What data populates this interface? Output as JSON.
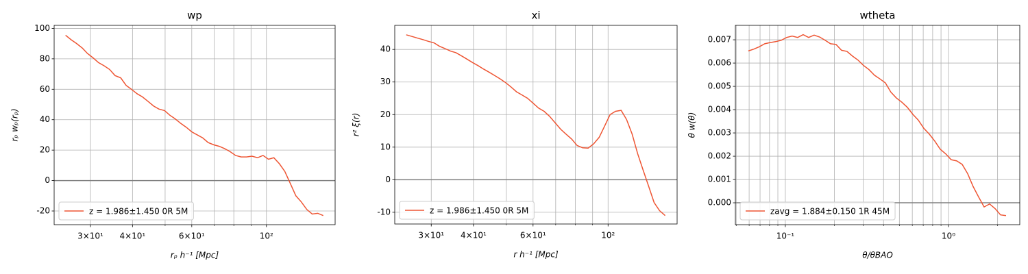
{
  "chart_data": [
    {
      "type": "line",
      "title": "wp",
      "xlabel": "rₚ h⁻¹ [Mpc]",
      "ylabel": "rₚ wₚ(rₚ)",
      "xscale": "log",
      "grid": true,
      "legend": "lower left",
      "xlim": [
        23.4,
        160
      ],
      "ylim": [
        -29,
        102
      ],
      "xticks": [
        {
          "value": 30,
          "label": "3×10¹"
        },
        {
          "value": 40,
          "label": "4×10¹"
        },
        {
          "value": 60,
          "label": "6×10¹"
        },
        {
          "value": 100,
          "label": "10²"
        }
      ],
      "xminorticks": [
        50,
        70,
        80,
        90
      ],
      "yticks": [
        -20,
        0,
        20,
        40,
        60,
        80,
        100
      ],
      "hline": 0,
      "hline_color": "#808080",
      "x": [
        25.3,
        26.3,
        27.3,
        28.4,
        29.4,
        30.6,
        31.7,
        32.9,
        34.2,
        35.5,
        36.9,
        38.3,
        39.7,
        41.3,
        42.8,
        44.5,
        46.2,
        47.9,
        49.8,
        51.6,
        53.6,
        55.7,
        57.8,
        60.0,
        62.3,
        64.7,
        67.1,
        69.7,
        72.4,
        75.1,
        78.0,
        81.0,
        84.1,
        87.3,
        90.6,
        94.1,
        97.7,
        101.4,
        105.2,
        109.3,
        113.4,
        117.8,
        122.3,
        126.9,
        131.8,
        136.8,
        142.0,
        147.5
      ],
      "series": [
        {
          "name": "z = 1.986±1.450 0R 5M",
          "color": "#ee5533",
          "values": [
            95.5,
            92.5,
            90,
            87,
            83.5,
            80.5,
            77.5,
            75.5,
            73,
            69,
            67.5,
            62.5,
            60,
            57,
            55,
            52,
            49,
            47,
            46,
            43,
            40.5,
            37.5,
            35,
            32,
            30,
            28,
            25,
            23.5,
            22.5,
            21,
            19,
            16.5,
            15.5,
            15.5,
            16,
            15,
            16.5,
            14,
            15,
            11,
            6,
            -2,
            -10,
            -14,
            -19,
            -22,
            -21.5,
            -23
          ]
        }
      ]
    },
    {
      "type": "line",
      "title": "xi",
      "xlabel": "r h⁻¹ [Mpc]",
      "ylabel": "r² ξ(r)",
      "xscale": "log",
      "grid": true,
      "legend": "lower left",
      "xlim": [
        23.4,
        160
      ],
      "ylim": [
        -13.6,
        47.4
      ],
      "xticks": [
        {
          "value": 30,
          "label": "3×10¹"
        },
        {
          "value": 40,
          "label": "4×10¹"
        },
        {
          "value": 60,
          "label": "6×10¹"
        },
        {
          "value": 100,
          "label": "10²"
        }
      ],
      "xminorticks": [
        50,
        70,
        80,
        90
      ],
      "yticks": [
        -10,
        0,
        10,
        20,
        30,
        40
      ],
      "hline": 0,
      "hline_color": "#808080",
      "x": [
        25.3,
        26.3,
        27.3,
        28.4,
        29.4,
        30.6,
        31.7,
        32.9,
        34.2,
        35.5,
        36.9,
        38.3,
        39.7,
        41.3,
        42.8,
        44.5,
        46.2,
        47.9,
        49.8,
        51.6,
        53.6,
        55.7,
        57.8,
        60.0,
        62.3,
        64.7,
        67.1,
        69.7,
        72.4,
        75.1,
        78.0,
        81.0,
        84.1,
        87.3,
        90.6,
        94.1,
        97.7,
        101.4,
        105.2,
        109.3,
        113.4,
        117.8,
        122.3,
        126.9,
        131.8,
        136.8,
        142.0,
        147.5
      ],
      "series": [
        {
          "name": "z = 1.986±1.450 0R 5M",
          "color": "#ee5533",
          "values": [
            44.5,
            44,
            43.5,
            43,
            42.5,
            42,
            41,
            40.3,
            39.5,
            39,
            38,
            37,
            36,
            35,
            34,
            33,
            32,
            31,
            29.8,
            28.5,
            27,
            26,
            25,
            23.5,
            22,
            21,
            19.5,
            17.5,
            15.5,
            14,
            12.5,
            10.5,
            9.8,
            9.7,
            11,
            13,
            16.5,
            20,
            21,
            21.3,
            18.5,
            14,
            8,
            3,
            -2,
            -7,
            -9.5,
            -11
          ]
        }
      ]
    },
    {
      "type": "line",
      "title": "wtheta",
      "xlabel": "θ/θBAO",
      "ylabel": "θ w(θ)",
      "xscale": "log",
      "grid": true,
      "legend": "lower left",
      "xlim": [
        0.0494,
        2.735
      ],
      "ylim": [
        -0.00094,
        0.00762
      ],
      "xticks": [
        {
          "value": 0.1,
          "label": "10⁻¹"
        },
        {
          "value": 1,
          "label": "10⁰"
        }
      ],
      "xminorticks": [
        0.05,
        0.06,
        0.07,
        0.08,
        0.09,
        0.2,
        0.3,
        0.4,
        0.5,
        0.6,
        0.7,
        0.8,
        0.9,
        2
      ],
      "yticks": [
        {
          "value": 0,
          "label": "0.000"
        },
        {
          "value": 0.001,
          "label": "0.001"
        },
        {
          "value": 0.002,
          "label": "0.002"
        },
        {
          "value": 0.003,
          "label": "0.003"
        },
        {
          "value": 0.004,
          "label": "0.004"
        },
        {
          "value": 0.005,
          "label": "0.005"
        },
        {
          "value": 0.006,
          "label": "0.006"
        },
        {
          "value": 0.007,
          "label": "0.007"
        }
      ],
      "hline": 0,
      "hline_color": "#808080",
      "x": [
        0.0593,
        0.0641,
        0.0692,
        0.0748,
        0.0808,
        0.0873,
        0.0944,
        0.1019,
        0.1101,
        0.119,
        0.1286,
        0.1389,
        0.1501,
        0.1622,
        0.1752,
        0.1893,
        0.2045,
        0.221,
        0.2387,
        0.258,
        0.2787,
        0.3011,
        0.3254,
        0.3516,
        0.3799,
        0.4105,
        0.4436,
        0.4793,
        0.5178,
        0.5595,
        0.6045,
        0.6531,
        0.7058,
        0.7625,
        0.824,
        0.8903,
        0.9619,
        1.039,
        1.123,
        1.213,
        1.311,
        1.416,
        1.53,
        1.653,
        1.786,
        1.93,
        2.085,
        2.253
      ],
      "series": [
        {
          "name": "zavg = 1.884±0.150 1R 45M",
          "color": "#ee5533",
          "values": [
            0.00652,
            0.0066,
            0.0067,
            0.00683,
            0.00688,
            0.00692,
            0.00698,
            0.0071,
            0.00716,
            0.0071,
            0.00722,
            0.0071,
            0.0072,
            0.00712,
            0.00698,
            0.00683,
            0.0068,
            0.00655,
            0.0065,
            0.0063,
            0.00613,
            0.0059,
            0.00572,
            0.00548,
            0.00532,
            0.00515,
            0.00475,
            0.0045,
            0.00432,
            0.0041,
            0.0038,
            0.00355,
            0.0032,
            0.00295,
            0.00265,
            0.0023,
            0.0021,
            0.00185,
            0.0018,
            0.00165,
            0.00125,
            0.0007,
            0.00025,
            -0.00018,
            -5e-05,
            -0.00025,
            -0.00052,
            -0.00055
          ]
        }
      ]
    }
  ]
}
